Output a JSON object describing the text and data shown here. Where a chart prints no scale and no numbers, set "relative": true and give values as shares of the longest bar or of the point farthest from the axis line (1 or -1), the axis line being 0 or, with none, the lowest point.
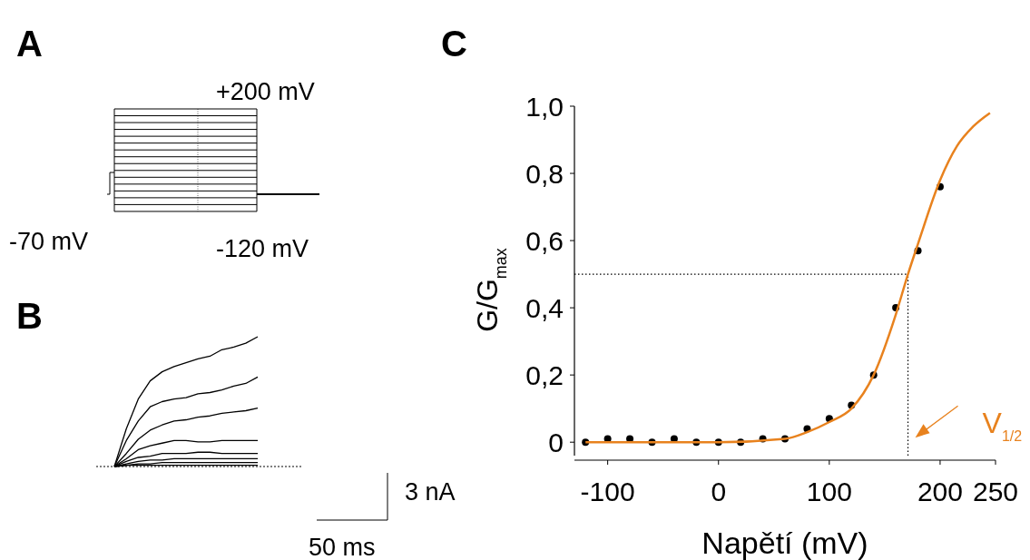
{
  "chart_data": [
    {
      "type": "other",
      "title": "A",
      "annotations": [
        "+200 mV",
        "-70 mV",
        "-120 mV"
      ]
    },
    {
      "type": "line",
      "title": "B",
      "relative": true,
      "annotations": [
        "3 nA",
        "50 ms"
      ],
      "categories": [
        null,
        null,
        null,
        null,
        null,
        null,
        null,
        null,
        null,
        null,
        null,
        null,
        null
      ],
      "series": [
        {
          "color": "#000000",
          "values": [
            0,
            0.29,
            0.52,
            0.66,
            0.73,
            0.77,
            0.8,
            0.83,
            0.85,
            0.9,
            0.92,
            0.95,
            1.0
          ]
        },
        {
          "color": "#000000",
          "values": [
            0,
            0.2,
            0.35,
            0.46,
            0.5,
            0.52,
            0.53,
            0.56,
            0.57,
            0.59,
            0.62,
            0.64,
            0.69
          ]
        },
        {
          "color": "#000000",
          "values": [
            0,
            0.1,
            0.21,
            0.28,
            0.32,
            0.35,
            0.36,
            0.38,
            0.39,
            0.41,
            0.42,
            0.43,
            0.45
          ]
        },
        {
          "color": "#000000",
          "values": [
            0,
            0.06,
            0.13,
            0.16,
            0.18,
            0.2,
            0.2,
            0.19,
            0.19,
            0.2,
            0.2,
            0.2,
            0.2
          ]
        },
        {
          "color": "#000000",
          "values": [
            0,
            0.04,
            0.07,
            0.08,
            0.1,
            0.1,
            0.1,
            0.11,
            0.11,
            0.1,
            0.1,
            0.1,
            0.1
          ]
        },
        {
          "color": "#000000",
          "values": [
            0,
            0.02,
            0.04,
            0.05,
            0.05,
            0.06,
            0.06,
            0.06,
            0.06,
            0.06,
            0.06,
            0.06,
            0.06
          ]
        },
        {
          "color": "#000000",
          "values": [
            0,
            0.01,
            0.02,
            0.02,
            0.03,
            0.03,
            0.03,
            0.03,
            0.03,
            0.03,
            0.03,
            0.03,
            0.03
          ]
        },
        {
          "color": "#000000",
          "values": [
            0,
            0.01,
            0.01,
            0.01,
            0.01,
            0.01,
            0.01,
            0.01,
            0.01,
            0.01,
            0.01,
            0.01,
            0.01
          ]
        }
      ]
    },
    {
      "type": "scatter",
      "title": "C",
      "xlabel": "Napětí (mV)",
      "ylabel": "G/G$_{max}$",
      "xlim": [
        -130,
        250
      ],
      "xticks": [
        -100,
        0,
        100,
        200,
        250
      ],
      "ylim": [
        -0.04,
        1
      ],
      "yticks": [
        0,
        {
          "value": 0.2,
          "label": "0,2"
        },
        {
          "value": 0.4,
          "label": "0,4"
        },
        {
          "value": 0.6,
          "label": "0,6"
        },
        {
          "value": 0.8,
          "label": "0,8"
        },
        {
          "value": 1,
          "label": "1,0"
        }
      ],
      "series": [
        {
          "type": "scatter",
          "color": "#000000",
          "marker": "circle",
          "x": [
            -120,
            -100,
            -80,
            -60,
            -40,
            -20,
            0,
            20,
            40,
            60,
            80,
            100,
            120,
            140,
            160,
            180,
            200
          ],
          "values": [
            0.0,
            0.01,
            0.01,
            0.0,
            0.01,
            0.0,
            0.0,
            0.0,
            0.01,
            0.01,
            0.04,
            0.07,
            0.11,
            0.2,
            0.4,
            0.57,
            0.76
          ]
        },
        {
          "type": "line",
          "color": "#e8821e",
          "marker": "none",
          "x": [
            -120,
            0,
            60,
            80,
            100,
            120,
            140,
            160,
            171,
            180,
            200,
            215,
            230,
            245
          ],
          "values": [
            0,
            0,
            0.01,
            0.03,
            0.06,
            0.1,
            0.2,
            0.38,
            0.5,
            0.59,
            0.78,
            0.88,
            0.94,
            0.98
          ]
        }
      ],
      "ref_lines": [
        {
          "axis": "y",
          "value": 0.5,
          "line_style": "dotted",
          "color": "#000000"
        },
        {
          "axis": "x",
          "value": 171,
          "line_style": "dotted",
          "color": "#000000"
        }
      ],
      "annotations": [
        {
          "text": "V$_{1/2}$",
          "x": 171,
          "y": 0
        }
      ]
    }
  ]
}
